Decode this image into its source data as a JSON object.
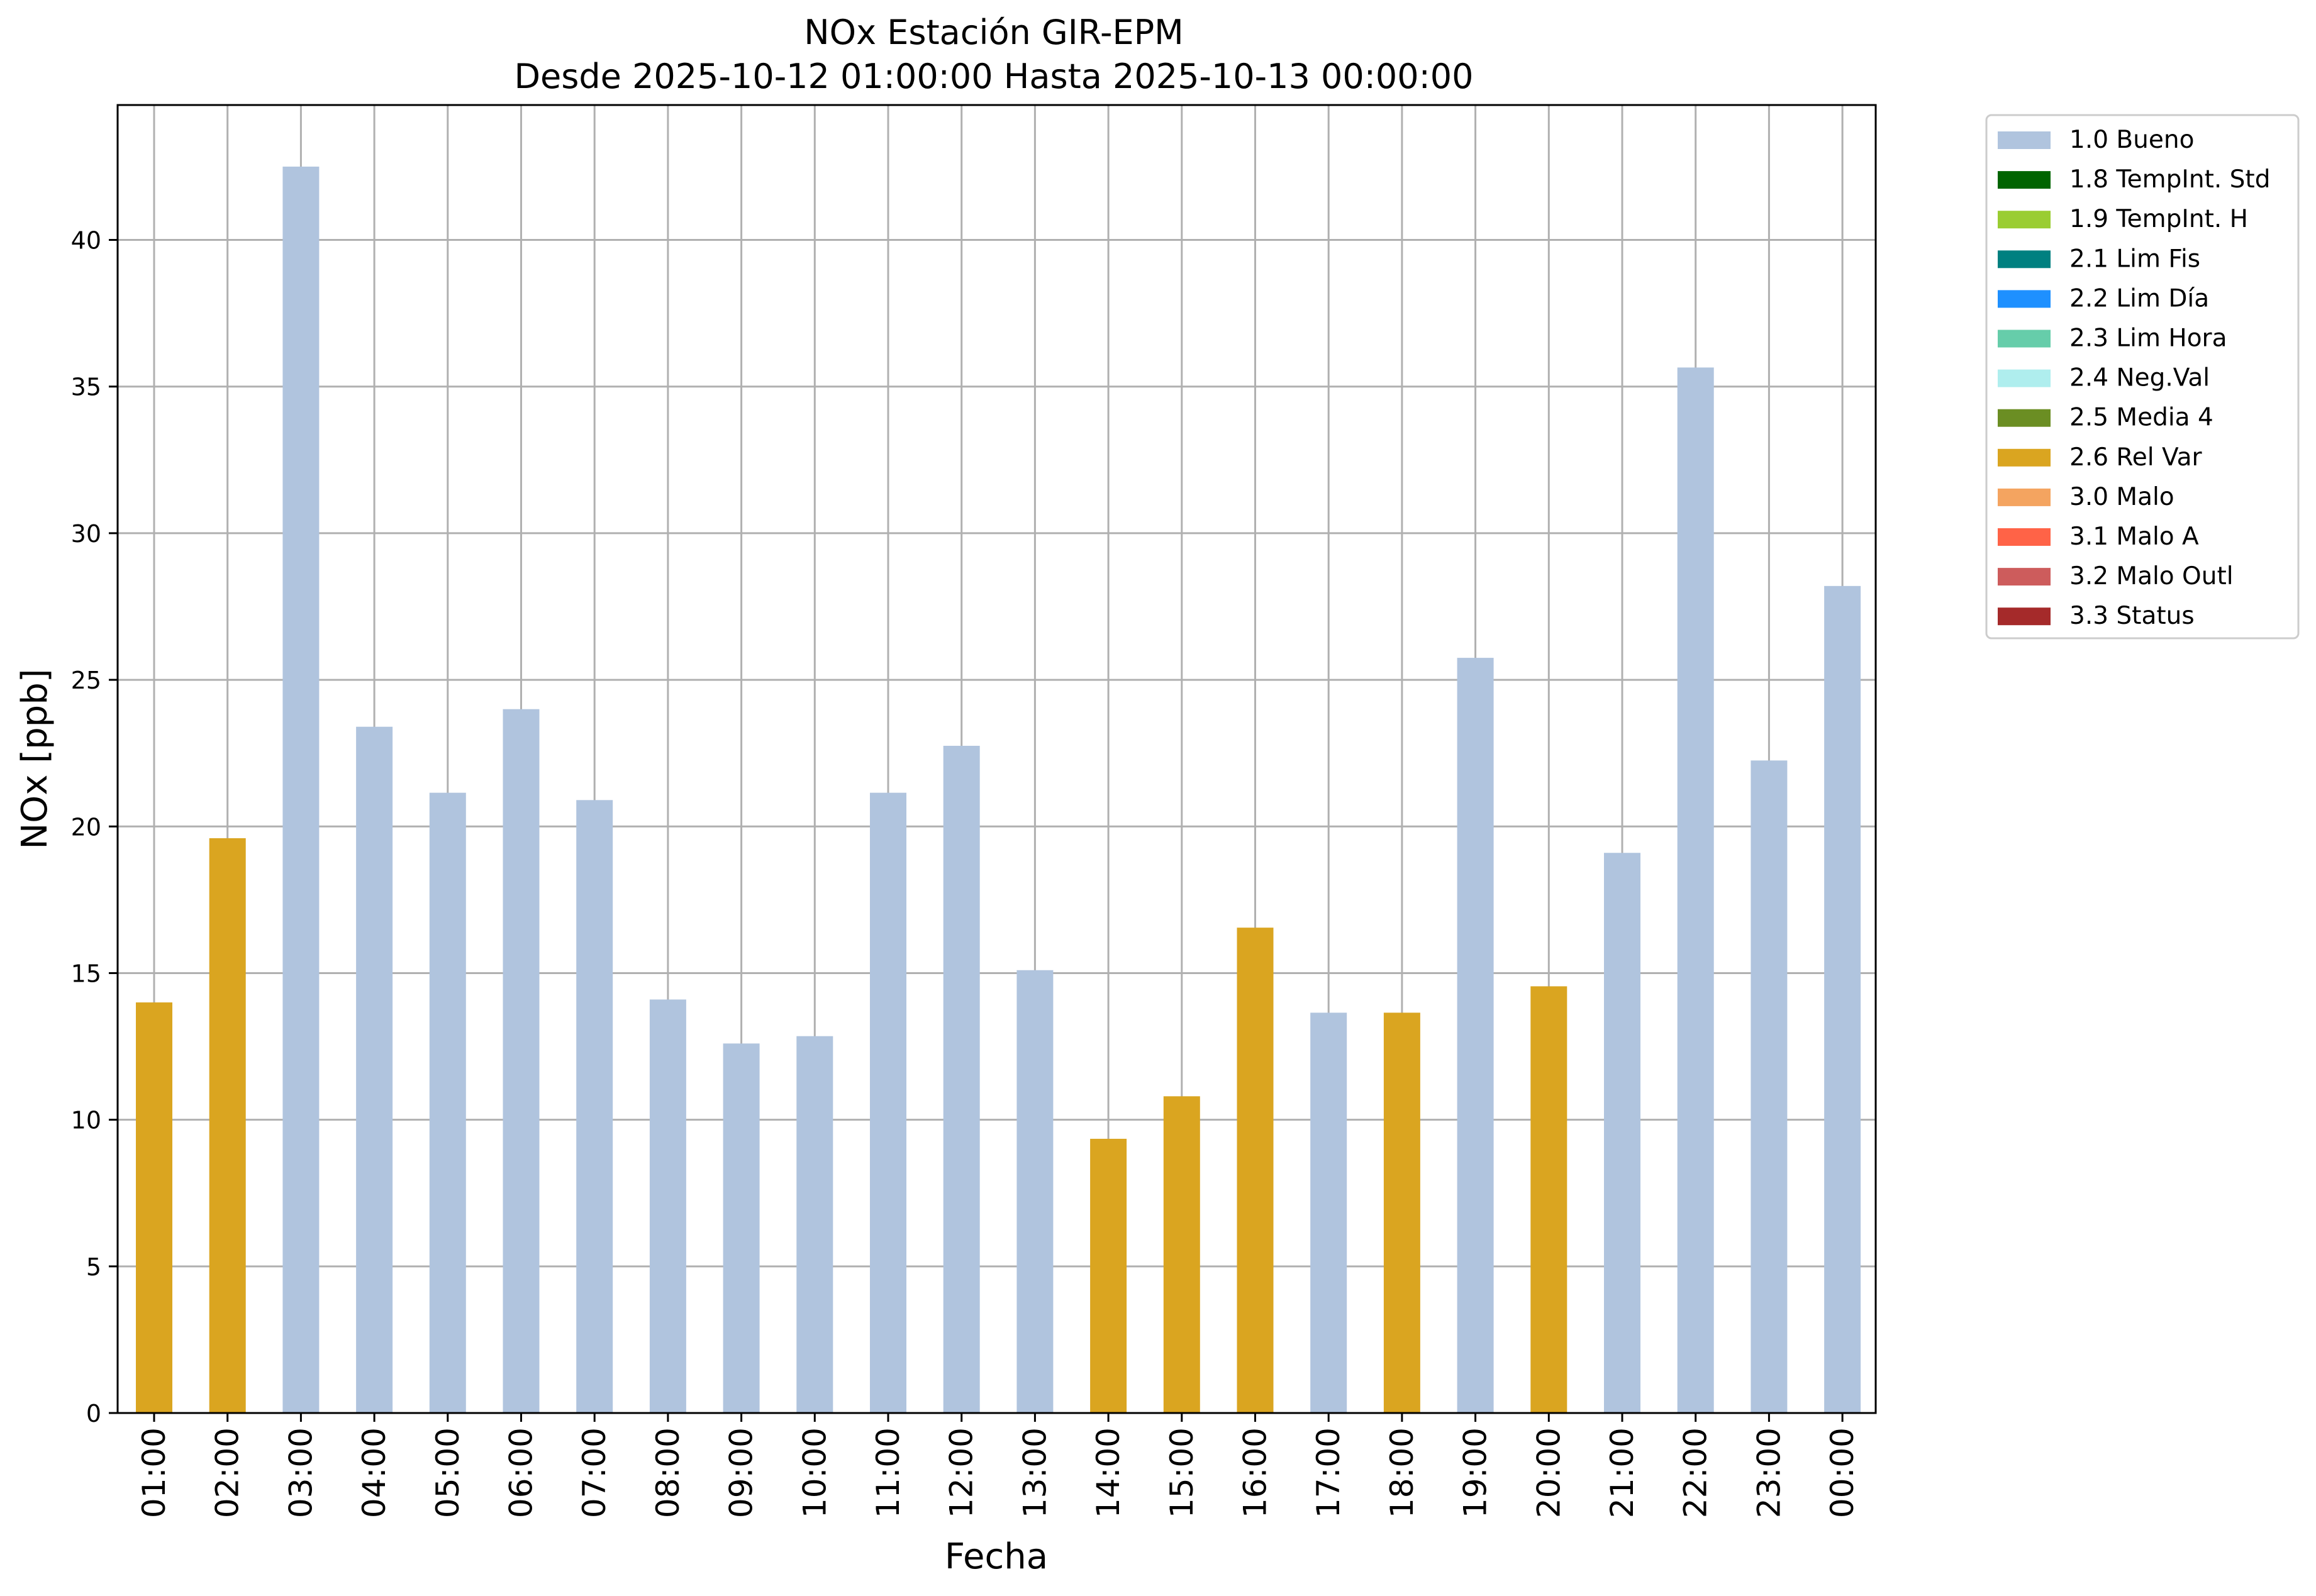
{
  "chart_data": {
    "type": "bar",
    "title": "NOx Estación GIR-EPM",
    "subtitle": "Desde 2025-10-12 01:00:00 Hasta 2025-10-13 00:00:00",
    "xlabel": "Fecha",
    "ylabel": "NOx [ppb]",
    "ylim": [
      0,
      44.6
    ],
    "yticks": [
      0,
      5,
      10,
      15,
      20,
      25,
      30,
      35,
      40
    ],
    "ytick_labels": [
      "0",
      "5",
      "10",
      "15",
      "20",
      "25",
      "30",
      "35",
      "40"
    ],
    "grid": true,
    "legend_position": "outside-top-right",
    "categories": [
      "01:00",
      "02:00",
      "03:00",
      "04:00",
      "05:00",
      "06:00",
      "07:00",
      "08:00",
      "09:00",
      "10:00",
      "11:00",
      "12:00",
      "13:00",
      "14:00",
      "15:00",
      "16:00",
      "17:00",
      "18:00",
      "19:00",
      "20:00",
      "21:00",
      "22:00",
      "23:00",
      "00:00"
    ],
    "values": [
      14.0,
      19.6,
      42.5,
      23.4,
      21.15,
      24.0,
      20.9,
      14.1,
      12.6,
      12.85,
      21.15,
      22.75,
      15.1,
      9.35,
      10.8,
      16.55,
      13.65,
      13.65,
      25.75,
      14.55,
      19.1,
      35.65,
      22.25,
      28.2
    ],
    "flags": [
      "2.6 Rel Var",
      "2.6 Rel Var",
      "1.0 Bueno",
      "1.0 Bueno",
      "1.0 Bueno",
      "1.0 Bueno",
      "1.0 Bueno",
      "1.0 Bueno",
      "1.0 Bueno",
      "1.0 Bueno",
      "1.0 Bueno",
      "1.0 Bueno",
      "1.0 Bueno",
      "2.6 Rel Var",
      "2.6 Rel Var",
      "2.6 Rel Var",
      "1.0 Bueno",
      "2.6 Rel Var",
      "1.0 Bueno",
      "2.6 Rel Var",
      "1.0 Bueno",
      "1.0 Bueno",
      "1.0 Bueno",
      "1.0 Bueno"
    ],
    "legend": [
      {
        "label": "1.0 Bueno",
        "color": "#b0c4de"
      },
      {
        "label": "1.8 TempInt. Std",
        "color": "#006400"
      },
      {
        "label": "1.9 TempInt. H",
        "color": "#9acd32"
      },
      {
        "label": "2.1 Lim Fis",
        "color": "#008080"
      },
      {
        "label": "2.2 Lim Día",
        "color": "#1e90ff"
      },
      {
        "label": "2.3 Lim Hora",
        "color": "#66cdaa"
      },
      {
        "label": "2.4 Neg.Val",
        "color": "#afeeee"
      },
      {
        "label": "2.5 Media 4",
        "color": "#6b8e23"
      },
      {
        "label": "2.6 Rel Var",
        "color": "#daa520"
      },
      {
        "label": "3.0 Malo",
        "color": "#f4a460"
      },
      {
        "label": "3.1 Malo A",
        "color": "#ff6347"
      },
      {
        "label": "3.2 Malo Outl",
        "color": "#cd5c5c"
      },
      {
        "label": "3.3 Status",
        "color": "#a52a2a"
      }
    ]
  }
}
